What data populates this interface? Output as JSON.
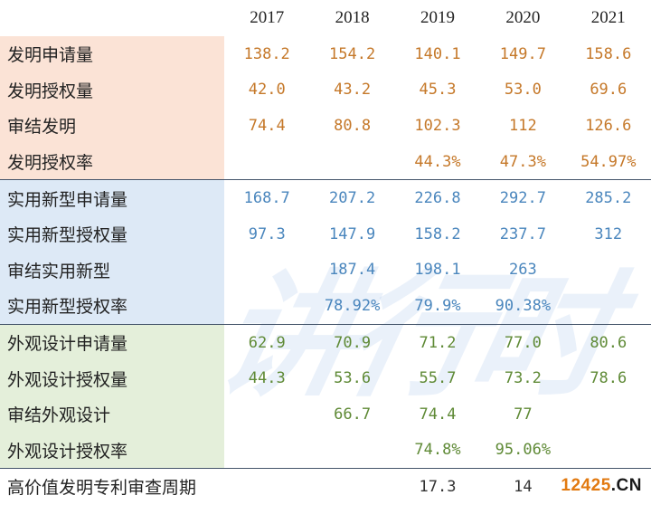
{
  "watermark": "讲行时",
  "years": [
    "2017",
    "2018",
    "2019",
    "2020",
    "2021"
  ],
  "groups": [
    {
      "name": "invention",
      "rows": [
        {
          "label": "发明申请量",
          "values": [
            "138.2",
            "154.2",
            "140.1",
            "149.7",
            "158.6"
          ]
        },
        {
          "label": "发明授权量",
          "values": [
            "42.0",
            "43.2",
            "45.3",
            "53.0",
            "69.6"
          ]
        },
        {
          "label": "审结发明",
          "values": [
            "74.4",
            "80.8",
            "102.3",
            "112",
            "126.6"
          ]
        },
        {
          "label": "发明授权率",
          "values": [
            "",
            "",
            "44.3%",
            "47.3%",
            "54.97%"
          ]
        }
      ]
    },
    {
      "name": "utility-model",
      "rows": [
        {
          "label": "实用新型申请量",
          "values": [
            "168.7",
            "207.2",
            "226.8",
            "292.7",
            "285.2"
          ]
        },
        {
          "label": "实用新型授权量",
          "values": [
            "97.3",
            "147.9",
            "158.2",
            "237.7",
            "312"
          ]
        },
        {
          "label": "审结实用新型",
          "values": [
            "",
            "187.4",
            "198.1",
            "263",
            ""
          ]
        },
        {
          "label": "实用新型授权率",
          "values": [
            "",
            "78.92%",
            "79.9%",
            "90.38%",
            ""
          ]
        }
      ]
    },
    {
      "name": "design",
      "rows": [
        {
          "label": "外观设计申请量",
          "values": [
            "62.9",
            "70.9",
            "71.2",
            "77.0",
            "80.6"
          ]
        },
        {
          "label": "外观设计授权量",
          "values": [
            "44.3",
            "53.6",
            "55.7",
            "73.2",
            "78.6"
          ]
        },
        {
          "label": "审结外观设计",
          "values": [
            "",
            "66.7",
            "74.4",
            "77",
            ""
          ]
        },
        {
          "label": "外观设计授权率",
          "values": [
            "",
            "",
            "74.8%",
            "95.06%",
            ""
          ]
        }
      ]
    },
    {
      "name": "review-period",
      "rows": [
        {
          "label": "高价值发明专利审查周期",
          "values": [
            "",
            "",
            "17.3",
            "14",
            ""
          ]
        }
      ]
    }
  ],
  "logo": {
    "number": "12425",
    "domain": ".CN"
  }
}
